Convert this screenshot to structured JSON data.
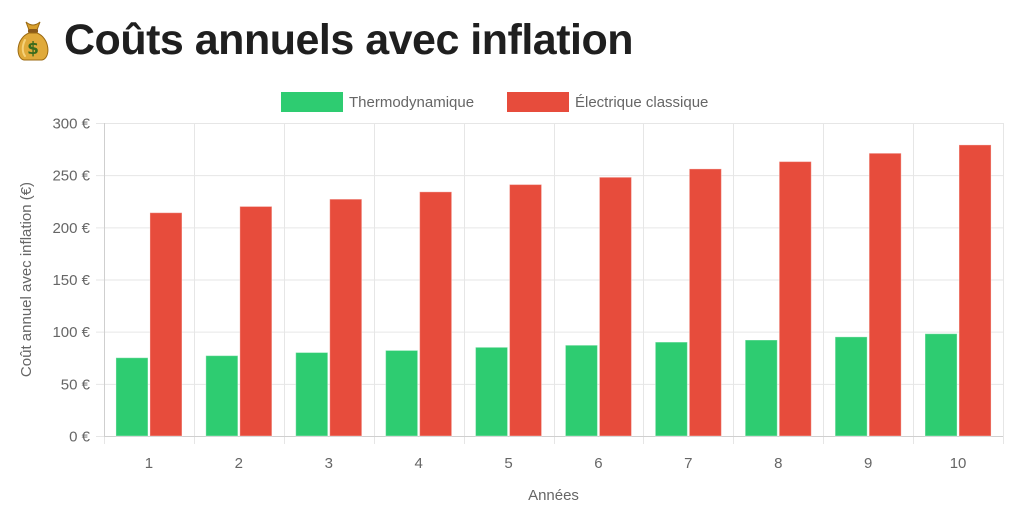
{
  "header": {
    "icon": "money-bag-icon",
    "title": "Coûts annuels avec inflation"
  },
  "colors": {
    "thermo": "#2ecc71",
    "electric": "#e74c3c",
    "grid": "#e6e6e6",
    "axis_text": "#666666"
  },
  "chart_data": {
    "type": "bar",
    "title": "Coûts annuels avec inflation",
    "xlabel": "Années",
    "ylabel": "Coût annuel avec inflation (€)",
    "categories": [
      "1",
      "2",
      "3",
      "4",
      "5",
      "6",
      "7",
      "8",
      "9",
      "10"
    ],
    "series": [
      {
        "name": "Thermodynamique",
        "values": [
          75,
          77,
          80,
          82,
          85,
          87,
          90,
          92,
          95,
          98
        ]
      },
      {
        "name": "Électrique classique",
        "values": [
          214,
          220,
          227,
          234,
          241,
          248,
          256,
          263,
          271,
          279
        ]
      }
    ],
    "ylim": [
      0,
      300
    ],
    "yticks": [
      0,
      50,
      100,
      150,
      200,
      250,
      300
    ],
    "ytick_labels": [
      "0 €",
      "50 €",
      "100 €",
      "150 €",
      "200 €",
      "250 €",
      "300 €"
    ],
    "grid": true,
    "legend_position": "top-center"
  }
}
